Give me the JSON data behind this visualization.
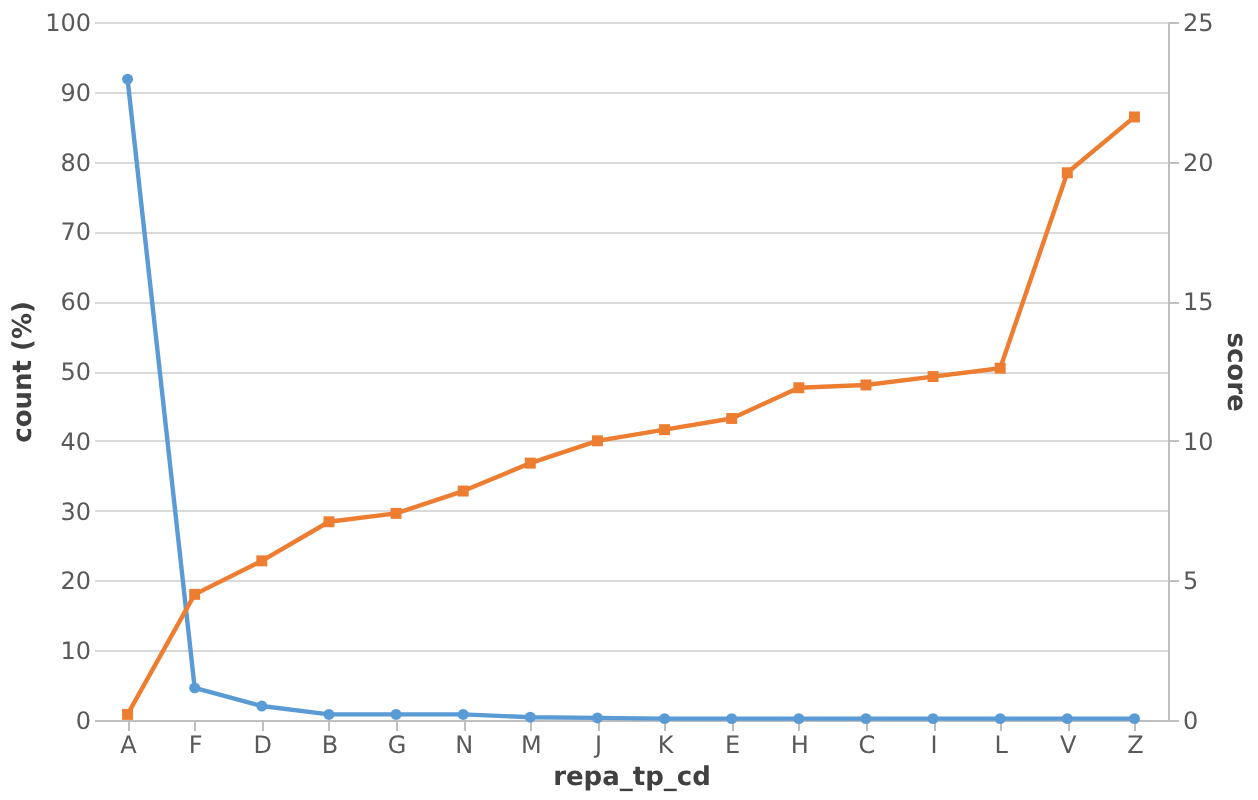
{
  "chart_data": {
    "type": "line",
    "xlabel": "repa_tp_cd",
    "ylabel": "count (%)",
    "y2label": "score",
    "categories": [
      "A",
      "F",
      "D",
      "B",
      "G",
      "N",
      "M",
      "J",
      "K",
      "E",
      "H",
      "C",
      "I",
      "L",
      "V",
      "Z"
    ],
    "series": [
      {
        "color": "#5b9bd5",
        "marker": "circle",
        "values": [
          91.8,
          4.6,
          2.0,
          0.8,
          0.8,
          0.8,
          0.4,
          0.3,
          0.2,
          0.2,
          0.2,
          0.2,
          0.2,
          0.2,
          0.2,
          0.2
        ]
      },
      {
        "color": "#ed7d31",
        "marker": "square",
        "axis": "y2",
        "values": [
          0.2,
          4.5,
          5.7,
          7.1,
          7.4,
          8.2,
          9.2,
          10.0,
          10.4,
          10.8,
          11.9,
          12.0,
          12.3,
          12.6,
          19.6,
          21.6
        ]
      }
    ],
    "ylim": [
      0,
      100
    ],
    "yticks": [
      0,
      10,
      20,
      30,
      40,
      50,
      60,
      70,
      80,
      90,
      100
    ],
    "y2lim": [
      0,
      25
    ],
    "y2ticks": [
      0,
      5,
      10,
      15,
      20,
      25
    ],
    "grid": "y",
    "line_style": "solid"
  }
}
